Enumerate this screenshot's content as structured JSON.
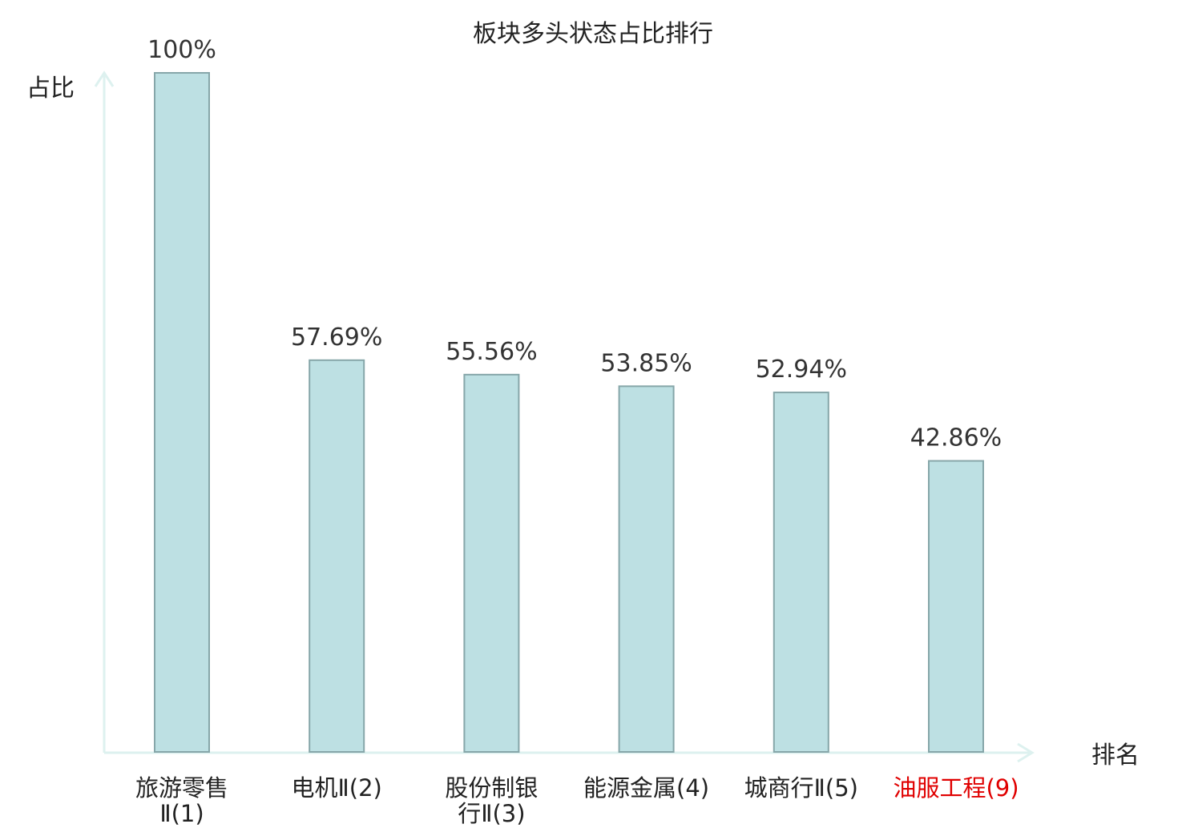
{
  "colors": {
    "bar_fill": "#bde0e3",
    "bar_stroke": "#86a6a9",
    "axis": "#ddf1ef",
    "text": "#333333",
    "highlight_text": "#e00000"
  },
  "chart_data": {
    "type": "bar",
    "title": "板块多头状态占比排行",
    "ylabel": "占比",
    "xlabel": "排名",
    "ylim": [
      0,
      100
    ],
    "grid": false,
    "categories": [
      {
        "lines": [
          "旅游零售",
          "Ⅱ(1)"
        ],
        "highlight": false
      },
      {
        "lines": [
          "电机Ⅱ(2)"
        ],
        "highlight": false
      },
      {
        "lines": [
          "股份制银",
          "行Ⅱ(3)"
        ],
        "highlight": false
      },
      {
        "lines": [
          "能源金属(4)"
        ],
        "highlight": false
      },
      {
        "lines": [
          "城商行Ⅱ(5)"
        ],
        "highlight": false
      },
      {
        "lines": [
          "油服工程(9)"
        ],
        "highlight": true
      }
    ],
    "values": [
      100,
      57.69,
      55.56,
      53.85,
      52.94,
      42.86
    ],
    "value_labels": [
      "100%",
      "57.69%",
      "55.56%",
      "53.85%",
      "52.94%",
      "42.86%"
    ]
  }
}
